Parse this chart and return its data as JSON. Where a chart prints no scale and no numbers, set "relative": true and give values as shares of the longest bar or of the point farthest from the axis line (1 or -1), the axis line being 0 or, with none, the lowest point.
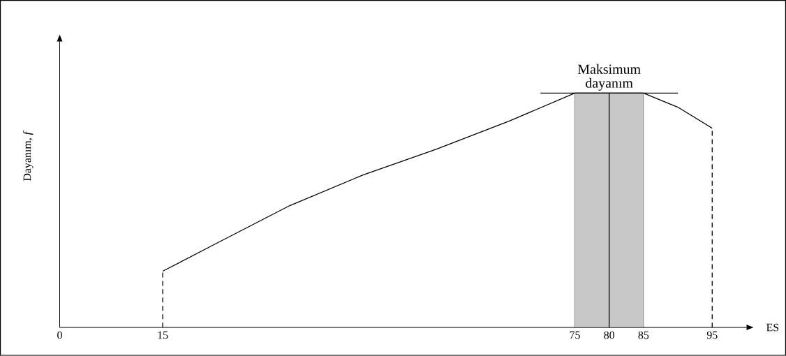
{
  "chart_data": {
    "type": "line",
    "relative": true,
    "xlabel": "ES",
    "ylabel": "Dayanım, *f*",
    "x": [
      15,
      22.9,
      33.5,
      44.1,
      54.8,
      65.4,
      75,
      80,
      85,
      90,
      95
    ],
    "series": [
      {
        "color": "#000000",
        "values": [
          0.24,
          0.36,
          0.52,
          0.65,
          0.76,
          0.88,
          1,
          1,
          1,
          0.94,
          0.85
        ]
      }
    ],
    "xlim": [
      0,
      100
    ],
    "xticks": [
      0,
      15,
      75,
      80,
      85,
      95
    ],
    "bands": [
      {
        "axis": "x",
        "from": 75,
        "to": 85,
        "color": "#c8c8c8"
      }
    ],
    "ref_lines": [
      {
        "axis": "x",
        "value": 80,
        "line_style": "solid"
      },
      {
        "axis": "x",
        "value": 15,
        "line_style": "dashed"
      },
      {
        "axis": "x",
        "value": 95,
        "line_style": "dashed"
      },
      {
        "axis": "y",
        "value": 1,
        "line_style": "solid"
      }
    ],
    "annotations": [
      {
        "text": "Maksimum dayanım",
        "x": 80,
        "y": 1
      }
    ],
    "grid": false,
    "marker": "none",
    "line_style": "solid"
  }
}
